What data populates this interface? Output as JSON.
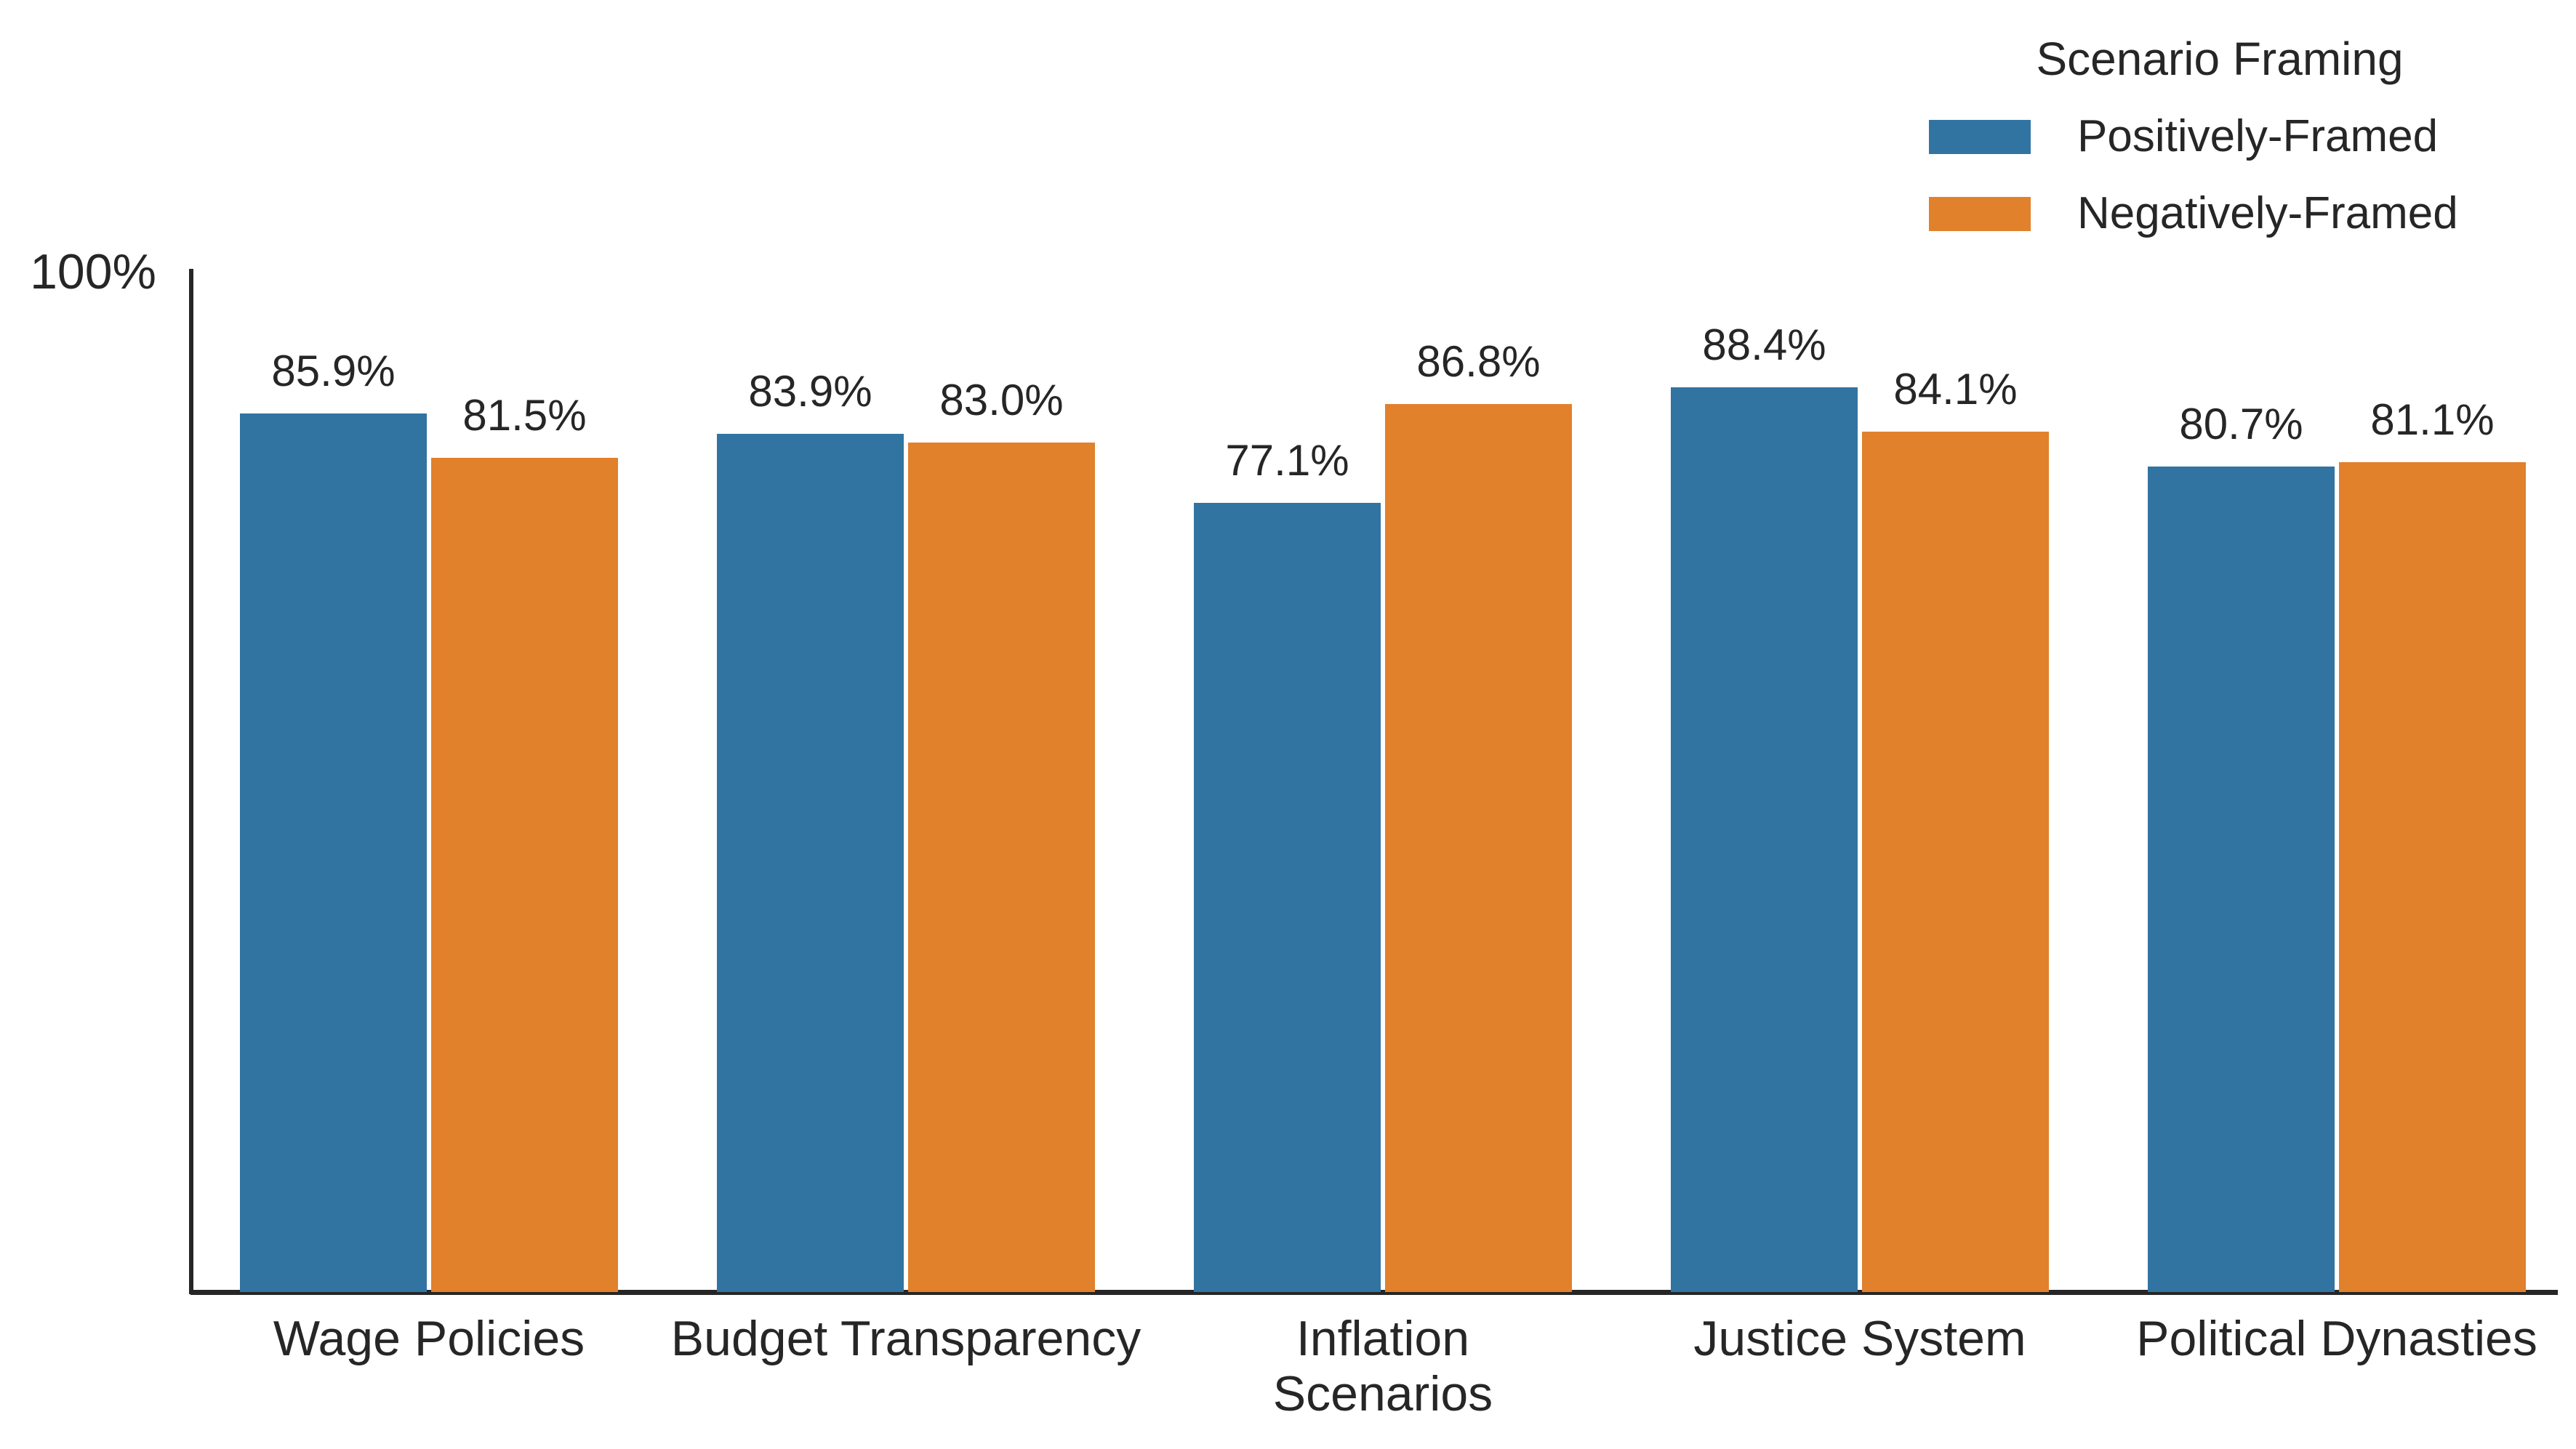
{
  "chart_data": {
    "type": "bar",
    "title": "",
    "categories": [
      "Wage Policies",
      "Budget Transparency",
      "Inflation\nScenarios",
      "Justice System",
      "Political Dynasties"
    ],
    "series": [
      {
        "name": "Positively-Framed",
        "color": "#3274a1",
        "hatch": "none",
        "values": [
          85.9,
          83.9,
          77.1,
          88.4,
          80.7
        ]
      },
      {
        "name": "Negatively-Framed",
        "color": "#e1812c",
        "hatch": "white-diagonal",
        "values": [
          81.5,
          83.0,
          86.8,
          84.1,
          81.1
        ]
      }
    ],
    "value_labels": [
      [
        "85.9%",
        "83.9%",
        "77.1%",
        "88.4%",
        "80.7%"
      ],
      [
        "81.5%",
        "83.0%",
        "86.8%",
        "84.1%",
        "81.1%"
      ]
    ],
    "xlabel": "",
    "ylabel": "",
    "ylim": [
      0,
      100
    ],
    "ytick_labels": [
      "100%"
    ],
    "grid": false,
    "background_color": "#ffffff",
    "axis_color": "#262626",
    "text_color": "#262626",
    "hatch_line_color": "#ffffff",
    "legend": {
      "title": "Scenario Framing",
      "position": "upper-right",
      "entries": [
        "Positively-Framed",
        "Negatively-Framed"
      ]
    }
  }
}
